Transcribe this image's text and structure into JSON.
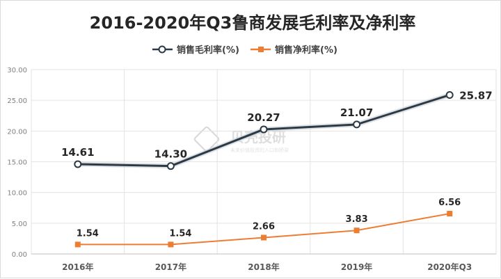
{
  "chart_data": {
    "type": "line",
    "title": "2016-2020年Q3鲁商发展毛利率及净利率",
    "categories": [
      "2016年",
      "2017年",
      "2018年",
      "2019年",
      "2020年Q3"
    ],
    "ylim": [
      0,
      30
    ],
    "yticks": [
      "0.00",
      "5.00",
      "10.00",
      "15.00",
      "20.00",
      "25.00",
      "30.00"
    ],
    "grid": true,
    "legend_position": "top-center",
    "series": [
      {
        "name": "销售毛利率(%)",
        "values": [
          14.61,
          14.3,
          20.27,
          21.07,
          25.87
        ],
        "labels": [
          "14.61",
          "14.30",
          "20.27",
          "21.07",
          "25.87"
        ],
        "color": "#2b3a46",
        "marker": "circle"
      },
      {
        "name": "销售净利率(%)",
        "values": [
          1.54,
          1.54,
          2.66,
          3.83,
          6.56
        ],
        "labels": [
          "1.54",
          "1.54",
          "2.66",
          "3.83",
          "6.56"
        ],
        "color": "#ed7d31",
        "marker": "square"
      }
    ],
    "watermark": {
      "title": "贝壳投研",
      "subtitle": "未来价值投资的入口和桥梁"
    }
  }
}
